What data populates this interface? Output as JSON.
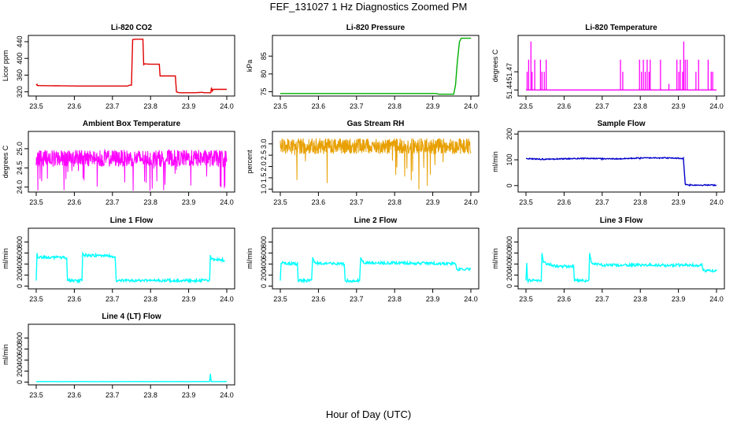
{
  "title": "FEF_131027  1 Hz Diagnostics Zoomed PM",
  "xlabel": "Hour of Day (UTC)",
  "chart_data": [
    {
      "type": "line",
      "title": "Li-820 CO2",
      "ylabel": "Licor ppm",
      "xlim": [
        23.5,
        24.0
      ],
      "ylim": [
        310,
        455
      ],
      "xticks": [
        "23.5",
        "23.6",
        "23.7",
        "23.8",
        "23.9",
        "24.0"
      ],
      "yticks": [
        320,
        360,
        400,
        440
      ],
      "ytick_labels": [
        "320",
        "360",
        "400",
        "440"
      ],
      "color": "#e00000",
      "noise": 0,
      "series": [
        {
          "x": [
            23.5,
            23.502,
            23.503,
            23.6,
            23.74,
            23.745,
            23.75,
            23.753,
            23.76,
            23.78,
            23.782,
            23.785,
            23.8,
            23.823,
            23.825,
            23.865,
            23.868,
            23.875,
            23.92,
            23.935,
            23.94,
            23.958,
            23.96,
            23.962,
            23.965,
            24.0
          ],
          "y": [
            336,
            338,
            335,
            334,
            334,
            336,
            336,
            445,
            446,
            446,
            385,
            387,
            386,
            386,
            358,
            358,
            320,
            318,
            318,
            319,
            318,
            318,
            330,
            322,
            326,
            326
          ]
        }
      ]
    },
    {
      "type": "line",
      "title": "Li-820 Pressure",
      "ylabel": "kPa",
      "xlim": [
        23.5,
        24.0
      ],
      "ylim": [
        73.8,
        90.8
      ],
      "xticks": [
        "23.5",
        "23.6",
        "23.7",
        "23.8",
        "23.9",
        "24.0"
      ],
      "yticks": [
        75,
        80,
        85
      ],
      "ytick_labels": [
        "75",
        "80",
        "85"
      ],
      "color": "#00b000",
      "noise": 0,
      "series": [
        {
          "x": [
            23.5,
            23.91,
            23.915,
            23.955,
            23.96,
            23.962,
            23.965,
            23.97,
            23.975,
            24.0
          ],
          "y": [
            74.5,
            74.5,
            74.3,
            74.3,
            77,
            80,
            84,
            89,
            90,
            90
          ]
        }
      ]
    },
    {
      "type": "spikes",
      "title": "Li-820 Temperature",
      "ylabel": "degrees C",
      "xlim": [
        23.5,
        24.0
      ],
      "ylim": [
        51.43,
        51.53
      ],
      "xticks": [
        "23.5",
        "23.6",
        "23.7",
        "23.8",
        "23.9",
        "24.0"
      ],
      "yticks": [
        51.44,
        51.47
      ],
      "ytick_labels": [
        "51.44",
        "51.47"
      ],
      "color": "#ff00ff",
      "base": 51.44,
      "series": [
        {
          "x": [
            23.503,
            23.507,
            23.513,
            23.516,
            23.523,
            23.538,
            23.542,
            23.548,
            23.553,
            23.748,
            23.754,
            23.798,
            23.803,
            23.808,
            23.813,
            23.818,
            23.823,
            23.826,
            23.853,
            23.875,
            23.896,
            23.901,
            23.905,
            23.911,
            23.914,
            23.918,
            23.923,
            23.946,
            23.953,
            23.978,
            23.986,
            23.99
          ],
          "y": [
            51.47,
            51.49,
            51.52,
            51.47,
            51.49,
            51.49,
            51.47,
            51.47,
            51.49,
            51.49,
            51.47,
            51.49,
            51.47,
            51.49,
            51.47,
            51.49,
            51.47,
            51.49,
            51.49,
            51.45,
            51.49,
            51.47,
            51.49,
            51.47,
            51.52,
            51.49,
            51.49,
            51.47,
            51.49,
            51.49,
            51.47,
            51.47
          ]
        }
      ]
    },
    {
      "type": "noise",
      "title": "Ambient Box Temperature",
      "ylabel": "degrees C",
      "xlim": [
        23.5,
        24.0
      ],
      "ylim": [
        23.87,
        25.45
      ],
      "xticks": [
        "23.5",
        "23.6",
        "23.7",
        "23.8",
        "23.9",
        "24.0"
      ],
      "yticks": [
        24.0,
        24.5,
        25.0
      ],
      "ytick_labels": [
        "24.0",
        "24.5",
        "25.0"
      ],
      "color": "#ff00ff",
      "center": 24.75,
      "band": 0.22,
      "spike_min": 23.9
    },
    {
      "type": "noise",
      "title": "Gas Stream RH",
      "ylabel": "percent",
      "xlim": [
        23.5,
        24.0
      ],
      "ylim": [
        0.87,
        3.55
      ],
      "xticks": [
        "23.5",
        "23.6",
        "23.7",
        "23.8",
        "23.9",
        "24.0"
      ],
      "yticks": [
        1.0,
        1.5,
        2.0,
        2.5,
        3.0
      ],
      "ytick_labels": [
        "1.0",
        "1.5",
        "2.0",
        "2.5",
        "3.0"
      ],
      "color": "#e8a000",
      "center": 2.9,
      "band": 0.35,
      "spike_min": 0.9
    },
    {
      "type": "line",
      "title": "Sample Flow",
      "ylabel": "ml/min",
      "xlim": [
        23.5,
        24.0
      ],
      "ylim": [
        -25,
        210
      ],
      "xticks": [
        "23.5",
        "23.6",
        "23.7",
        "23.8",
        "23.9",
        "24.0"
      ],
      "yticks": [
        0,
        100,
        200
      ],
      "ytick_labels": [
        "0",
        "100",
        "200"
      ],
      "color": "#0000cc",
      "noise": 2,
      "series": [
        {
          "x": [
            23.5,
            23.55,
            23.6,
            23.65,
            23.7,
            23.75,
            23.8,
            23.85,
            23.9,
            23.913,
            23.918,
            23.93,
            24.0
          ],
          "y": [
            105,
            102,
            104,
            106,
            104,
            104,
            107,
            108,
            106,
            105,
            5,
            2,
            2
          ]
        }
      ]
    },
    {
      "type": "line",
      "title": "Line 1 Flow",
      "ylabel": "ml/min",
      "xlim": [
        23.5,
        24.0
      ],
      "ylim": [
        -50,
        1050
      ],
      "xticks": [
        "23.5",
        "23.6",
        "23.7",
        "23.8",
        "23.9",
        "24.0"
      ],
      "yticks": [
        0,
        200,
        400,
        600,
        800
      ],
      "ytick_labels": [
        "0",
        "200",
        "400",
        "600",
        "800"
      ],
      "color": "#00ffff",
      "noise": 25,
      "series": [
        {
          "x": [
            23.5,
            23.502,
            23.504,
            23.58,
            23.582,
            23.62,
            23.622,
            23.625,
            23.707,
            23.71,
            23.955,
            23.957,
            23.96,
            23.995
          ],
          "y": [
            100,
            600,
            520,
            520,
            100,
            100,
            600,
            560,
            540,
            100,
            100,
            560,
            480,
            470
          ]
        }
      ]
    },
    {
      "type": "line",
      "title": "Line 2 Flow",
      "ylabel": "ml/min",
      "xlim": [
        23.5,
        24.0
      ],
      "ylim": [
        -50,
        1050
      ],
      "xticks": [
        "23.5",
        "23.6",
        "23.7",
        "23.8",
        "23.9",
        "24.0"
      ],
      "yticks": [
        0,
        200,
        400,
        600,
        800
      ],
      "ytick_labels": [
        "0",
        "200",
        "400",
        "600",
        "800"
      ],
      "color": "#00ffff",
      "noise": 25,
      "series": [
        {
          "x": [
            23.5,
            23.502,
            23.545,
            23.547,
            23.582,
            23.585,
            23.59,
            23.668,
            23.67,
            23.708,
            23.711,
            23.716,
            23.73,
            23.8,
            23.9,
            23.96,
            23.963,
            24.0
          ],
          "y": [
            100,
            420,
            400,
            100,
            100,
            520,
            420,
            400,
            100,
            100,
            520,
            440,
            420,
            420,
            410,
            410,
            300,
            310
          ]
        }
      ]
    },
    {
      "type": "line",
      "title": "Line 3 Flow",
      "ylabel": "ml/min",
      "xlim": [
        23.5,
        24.0
      ],
      "ylim": [
        -50,
        1050
      ],
      "xticks": [
        "23.5",
        "23.6",
        "23.7",
        "23.8",
        "23.9",
        "24.0"
      ],
      "yticks": [
        0,
        200,
        400,
        600,
        800
      ],
      "ytick_labels": [
        "0",
        "200",
        "400",
        "600",
        "800"
      ],
      "color": "#00ffff",
      "noise": 25,
      "series": [
        {
          "x": [
            23.5,
            23.502,
            23.504,
            23.54,
            23.542,
            23.546,
            23.58,
            23.625,
            23.627,
            23.665,
            23.667,
            23.672,
            23.7,
            23.8,
            23.9,
            23.962,
            23.965,
            24.0
          ],
          "y": [
            100,
            420,
            100,
            100,
            600,
            420,
            360,
            360,
            100,
            100,
            600,
            420,
            380,
            380,
            380,
            380,
            280,
            280
          ]
        }
      ]
    },
    {
      "type": "line",
      "title": "Line 4 (LT) Flow",
      "ylabel": "ml/min",
      "xlim": [
        23.5,
        24.0
      ],
      "ylim": [
        -50,
        1050
      ],
      "xticks": [
        "23.5",
        "23.6",
        "23.7",
        "23.8",
        "23.9",
        "24.0"
      ],
      "yticks": [
        0,
        200,
        400,
        600,
        800
      ],
      "ytick_labels": [
        "0",
        "200",
        "400",
        "600",
        "800"
      ],
      "color": "#00ffff",
      "noise": 2,
      "series": [
        {
          "x": [
            23.5,
            23.955,
            23.957,
            23.959,
            23.962,
            24.0
          ],
          "y": [
            10,
            10,
            150,
            10,
            10,
            10
          ]
        }
      ]
    }
  ]
}
